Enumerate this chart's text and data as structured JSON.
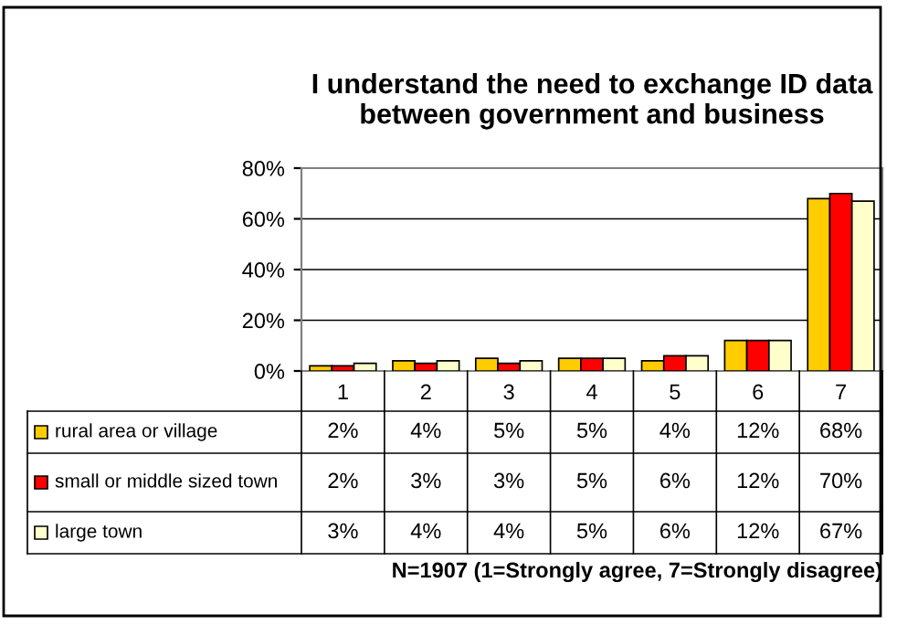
{
  "chart_data": {
    "type": "bar",
    "title": "I understand the need to exchange ID data\nbetween government and business",
    "categories": [
      "1",
      "2",
      "3",
      "4",
      "5",
      "6",
      "7"
    ],
    "series": [
      {
        "name": "rural area or village",
        "color": "#ffcc00",
        "values": [
          2,
          4,
          5,
          5,
          4,
          12,
          68
        ],
        "value_labels": [
          "2%",
          "4%",
          "5%",
          "5%",
          "4%",
          "12%",
          "68%"
        ]
      },
      {
        "name": "small or middle sized town",
        "color": "#ff0000",
        "values": [
          2,
          3,
          3,
          5,
          6,
          12,
          70
        ],
        "value_labels": [
          "2%",
          "3%",
          "3%",
          "5%",
          "6%",
          "12%",
          "70%"
        ]
      },
      {
        "name": "large town",
        "color": "#ffffcc",
        "values": [
          3,
          4,
          4,
          5,
          6,
          12,
          67
        ],
        "value_labels": [
          "3%",
          "4%",
          "4%",
          "5%",
          "6%",
          "12%",
          "67%"
        ]
      }
    ],
    "ylim": [
      0,
      80
    ],
    "yticks": [
      {
        "value": 0,
        "label": "0%"
      },
      {
        "value": 20,
        "label": "20%"
      },
      {
        "value": 40,
        "label": "40%"
      },
      {
        "value": 60,
        "label": "60%"
      },
      {
        "value": 80,
        "label": "80%"
      }
    ],
    "grid": "y",
    "legend": "bottom",
    "annotations": [
      "N=1907 (1=Strongly agree, 7=Strongly disagree)"
    ]
  }
}
